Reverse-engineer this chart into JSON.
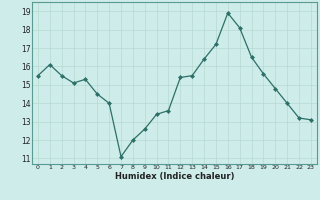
{
  "x": [
    0,
    1,
    2,
    3,
    4,
    5,
    6,
    7,
    8,
    9,
    10,
    11,
    12,
    13,
    14,
    15,
    16,
    17,
    18,
    19,
    20,
    21,
    22,
    23
  ],
  "y": [
    15.5,
    16.1,
    15.5,
    15.1,
    15.3,
    14.5,
    14.0,
    11.1,
    12.0,
    12.6,
    13.4,
    13.6,
    15.4,
    15.5,
    16.4,
    17.2,
    18.9,
    18.1,
    16.5,
    15.6,
    14.8,
    14.0,
    13.2,
    13.1
  ],
  "xlabel": "Humidex (Indice chaleur)",
  "xlim": [
    -0.5,
    23.5
  ],
  "ylim": [
    10.7,
    19.5
  ],
  "yticks": [
    11,
    12,
    13,
    14,
    15,
    16,
    17,
    18,
    19
  ],
  "xtick_labels": [
    "0",
    "1",
    "2",
    "3",
    "4",
    "5",
    "6",
    "7",
    "8",
    "9",
    "10",
    "11",
    "12",
    "13",
    "14",
    "15",
    "16",
    "17",
    "18",
    "19",
    "20",
    "21",
    "22",
    "23"
  ],
  "line_color": "#2d7068",
  "marker_color": "#2d7068",
  "bg_color": "#cdecea",
  "grid_color": "#b8d8d4",
  "spine_color": "#5a9a90"
}
